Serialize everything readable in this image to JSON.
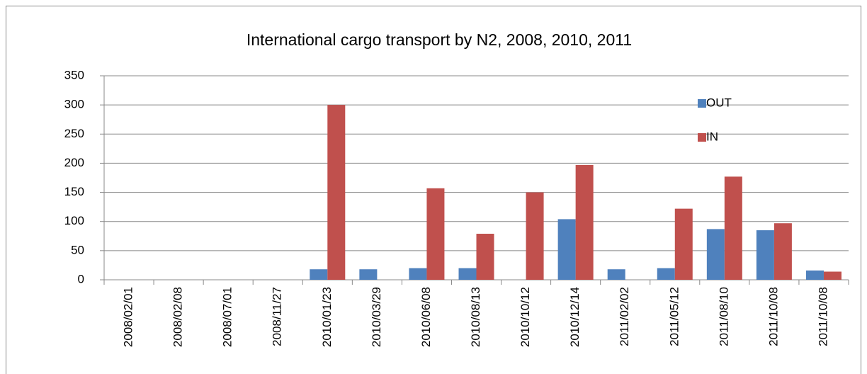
{
  "chart_data": {
    "type": "bar",
    "title": "International cargo transport by N2, 2008, 2010, 2011",
    "categories": [
      "2008/02/01",
      "2008/02/08",
      "2008/07/01",
      "2008/11/27",
      "2010/01/23",
      "2010/03/29",
      "2010/06/08",
      "2010/08/13",
      "2010/10/12",
      "2010/12/14",
      "2011/02/02",
      "2011/05/12",
      "2011/08/10",
      "2011/10/08",
      "2011/10/08"
    ],
    "series": [
      {
        "name": "OUT",
        "color": "#4f81bd",
        "values": [
          0,
          0,
          0,
          0,
          18,
          18,
          20,
          20,
          0,
          104,
          18,
          20,
          87,
          85,
          16
        ]
      },
      {
        "name": "IN",
        "color": "#c0504d",
        "values": [
          0,
          0,
          0,
          0,
          300,
          0,
          157,
          79,
          150,
          197,
          0,
          122,
          177,
          97,
          14
        ]
      }
    ],
    "ylim": [
      0,
      350
    ],
    "yticks": [
      0,
      50,
      100,
      150,
      200,
      250,
      300,
      350
    ],
    "grid": true,
    "legend": "upper right"
  }
}
